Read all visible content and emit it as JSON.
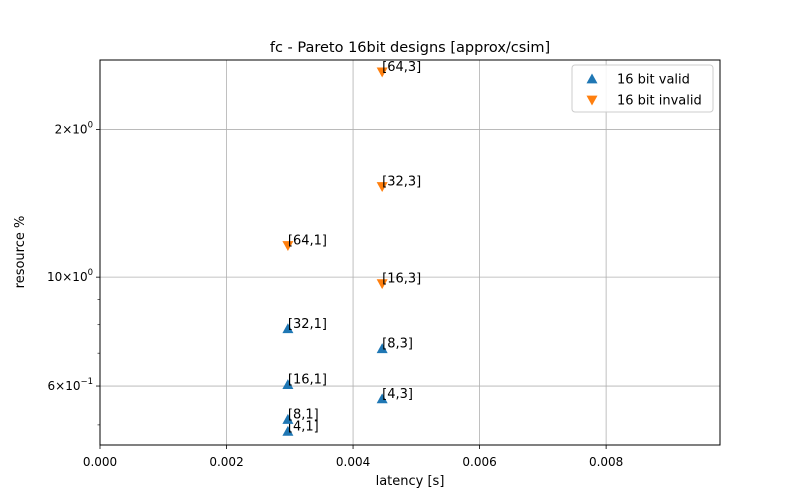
{
  "chart_data": {
    "type": "scatter",
    "title": "fc - Pareto 16bit designs [approx/csim]",
    "xlabel": "latency [s]",
    "ylabel": "resource %",
    "xlim": [
      0,
      0.0098
    ],
    "ylim": [
      0.455,
      2.77
    ],
    "yscale": "log",
    "grid": true,
    "legend_position": "top-right",
    "x_ticks": [
      {
        "value": 0,
        "label": "0.000"
      },
      {
        "value": 0.002,
        "label": "0.002"
      },
      {
        "value": 0.004,
        "label": "0.004"
      },
      {
        "value": 0.006,
        "label": "0.006"
      },
      {
        "value": 0.008,
        "label": "0.008"
      }
    ],
    "y_ticks": [
      {
        "value": 0.6,
        "base": "6",
        "sup": "−1"
      },
      {
        "value": 1.0,
        "base": "10",
        "sup": "0"
      },
      {
        "value": 2.0,
        "base": "2",
        "sup": "0"
      }
    ],
    "y_minor_ticks": [
      0.5,
      0.7,
      0.8,
      0.9
    ],
    "series": [
      {
        "name": "16 bit valid",
        "marker": "triangle-up",
        "color": "#1f77b4",
        "points": [
          {
            "x": 0.00297,
            "y": 0.485,
            "label": "[4,1]"
          },
          {
            "x": 0.00297,
            "y": 0.513,
            "label": "[8,1]"
          },
          {
            "x": 0.00297,
            "y": 0.604,
            "label": "[16,1]"
          },
          {
            "x": 0.00297,
            "y": 0.785,
            "label": "[32,1]"
          },
          {
            "x": 0.00446,
            "y": 0.565,
            "label": "[4,3]"
          },
          {
            "x": 0.00446,
            "y": 0.715,
            "label": "[8,3]"
          }
        ]
      },
      {
        "name": "16 bit invalid",
        "marker": "triangle-down",
        "color": "#ff7f0e",
        "points": [
          {
            "x": 0.00297,
            "y": 1.16,
            "label": "[64,1]"
          },
          {
            "x": 0.00446,
            "y": 0.97,
            "label": "[16,3]"
          },
          {
            "x": 0.00446,
            "y": 1.53,
            "label": "[32,3]"
          },
          {
            "x": 0.00446,
            "y": 2.62,
            "label": "[64,3]"
          }
        ]
      }
    ]
  }
}
